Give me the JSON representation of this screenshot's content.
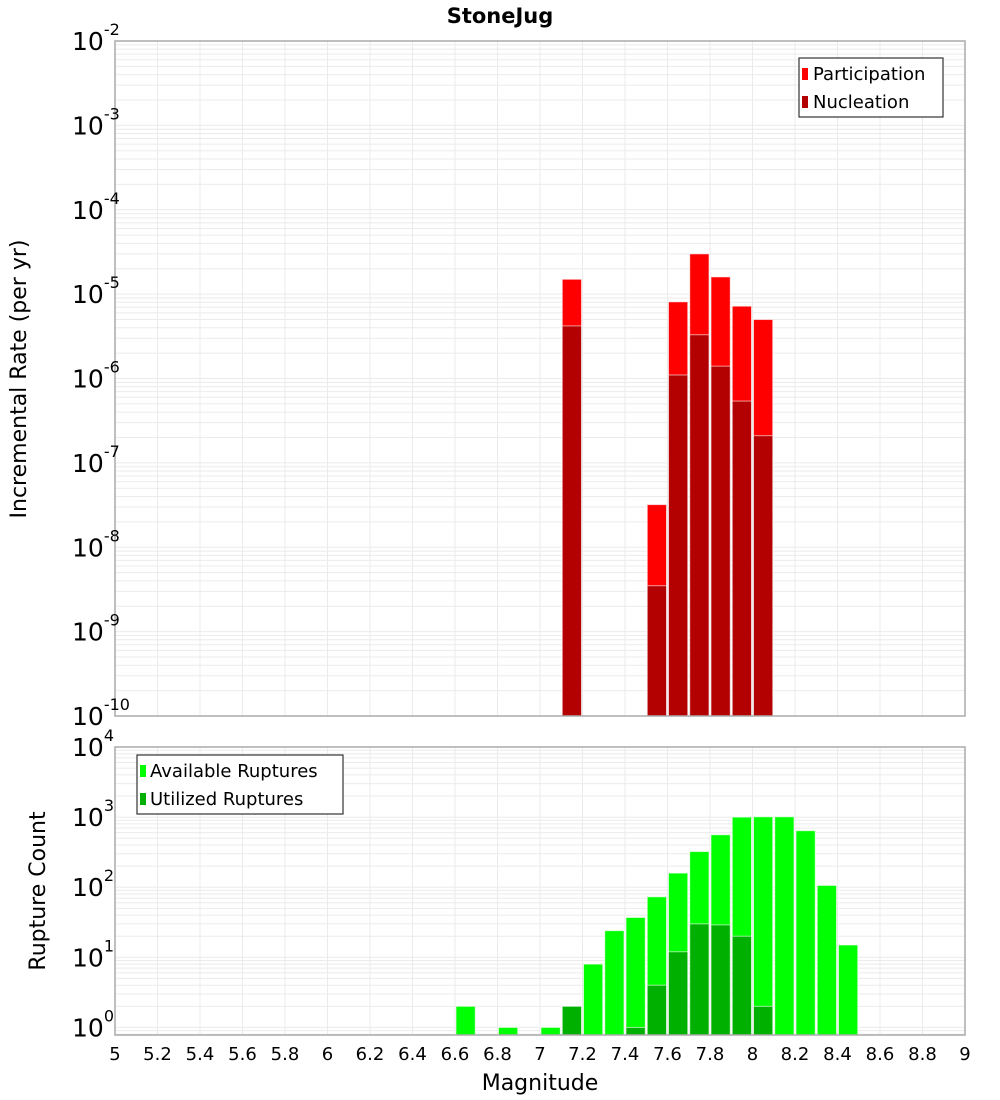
{
  "chart_data": [
    {
      "type": "bar",
      "title": "StoneJug",
      "xlabel": "Magnitude",
      "ylabel": "Incremental Rate (per yr)",
      "yscale": "log",
      "ylim": [
        1e-10,
        0.01
      ],
      "xlim": [
        5,
        9
      ],
      "grid": true,
      "legend_position": "top-right",
      "ytick_exponents": [
        "-10",
        "-9",
        "-8",
        "-7",
        "-6",
        "-5",
        "-4",
        "-3",
        "-2"
      ],
      "ytick_base": "10",
      "bin_width": 0.1,
      "series": [
        {
          "name": "Participation",
          "color": "#ff0000",
          "x": [
            7.15,
            7.55,
            7.65,
            7.75,
            7.85,
            7.95,
            8.05
          ],
          "values": [
            1.5e-05,
            3.2e-08,
            8.1e-06,
            3e-05,
            1.6e-05,
            7.2e-06,
            5e-06
          ]
        },
        {
          "name": "Nucleation",
          "color": "#b30000",
          "x": [
            7.15,
            7.55,
            7.65,
            7.75,
            7.85,
            7.95,
            8.05
          ],
          "values": [
            4.2e-06,
            3.5e-09,
            1.1e-06,
            3.3e-06,
            1.4e-06,
            5.4e-07,
            2.1e-07
          ]
        }
      ]
    },
    {
      "type": "bar",
      "xlabel": "Magnitude",
      "ylabel": "Rupture Count",
      "yscale": "log",
      "ylim": [
        0.78,
        10000
      ],
      "xlim": [
        5,
        9
      ],
      "grid": true,
      "legend_position": "top-left",
      "xtick_labels": [
        "5",
        "5.2",
        "5.4",
        "5.6",
        "5.8",
        "6",
        "6.2",
        "6.4",
        "6.6",
        "6.8",
        "7",
        "7.2",
        "7.4",
        "7.6",
        "7.8",
        "8",
        "8.2",
        "8.4",
        "8.6",
        "8.8",
        "9"
      ],
      "ytick_exponents": [
        "0",
        "1",
        "2",
        "3",
        "4"
      ],
      "ytick_base": "10",
      "bin_width": 0.1,
      "series": [
        {
          "name": "Available Ruptures",
          "color": "#00ff00",
          "x": [
            6.65,
            6.85,
            7.05,
            7.15,
            7.25,
            7.35,
            7.45,
            7.55,
            7.65,
            7.75,
            7.85,
            7.95,
            8.05,
            8.15,
            8.25,
            8.35,
            8.45
          ],
          "values": [
            2,
            1,
            1,
            2,
            8,
            24,
            37,
            73,
            159,
            323,
            560,
            1000,
            1010,
            1010,
            640,
            106,
            15
          ]
        },
        {
          "name": "Utilized Ruptures",
          "color": "#00b000",
          "x": [
            7.15,
            7.45,
            7.55,
            7.65,
            7.75,
            7.85,
            7.95,
            8.05
          ],
          "values": [
            2,
            1,
            4,
            12,
            30,
            29,
            20,
            2
          ]
        }
      ]
    }
  ]
}
